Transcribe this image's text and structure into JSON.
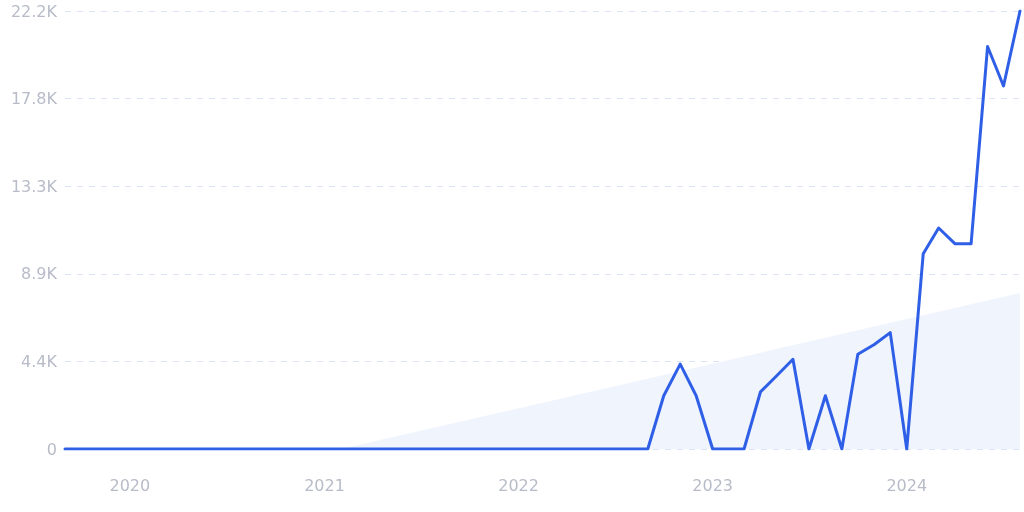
{
  "chart_data": {
    "type": "line",
    "xlim": [
      "2019-09",
      "2024-08"
    ],
    "xticks": [
      {
        "value": "2020",
        "label": "2020"
      },
      {
        "value": "2021",
        "label": "2021"
      },
      {
        "value": "2022",
        "label": "2022"
      },
      {
        "value": "2023",
        "label": "2023"
      },
      {
        "value": "2024",
        "label": "2024"
      }
    ],
    "ylim": [
      0,
      22200
    ],
    "yticks": [
      0,
      {
        "value": 4440,
        "label": "4.4K"
      },
      {
        "value": 8880,
        "label": "8.9K"
      },
      {
        "value": 13320,
        "label": "13.3K"
      },
      {
        "value": 17760,
        "label": "17.8K"
      },
      {
        "value": 22200,
        "label": "22.2K"
      }
    ],
    "grid": "y",
    "marker": "none",
    "line_style": "solid",
    "series": [
      {
        "type": "area",
        "color": "#eff4fd",
        "x": [
          "2021-02",
          "2024-08"
        ],
        "values": [
          0,
          7900
        ]
      },
      {
        "color": "#2f5fe6",
        "x": [
          "2019-09",
          "2019-10",
          "2019-11",
          "2019-12",
          "2020-01",
          "2020-02",
          "2020-03",
          "2020-04",
          "2020-05",
          "2020-06",
          "2020-07",
          "2020-08",
          "2020-09",
          "2020-10",
          "2020-11",
          "2020-12",
          "2021-01",
          "2021-02",
          "2021-03",
          "2021-04",
          "2021-05",
          "2021-06",
          "2021-07",
          "2021-08",
          "2021-09",
          "2021-10",
          "2021-11",
          "2021-12",
          "2022-01",
          "2022-02",
          "2022-03",
          "2022-04",
          "2022-05",
          "2022-06",
          "2022-07",
          "2022-08",
          "2022-09",
          "2022-10",
          "2022-11",
          "2022-12",
          "2023-01",
          "2023-02",
          "2023-03",
          "2023-04",
          "2023-05",
          "2023-06",
          "2023-07",
          "2023-08",
          "2023-09",
          "2023-10",
          "2023-11",
          "2023-12",
          "2024-01",
          "2024-02",
          "2024-03",
          "2024-04",
          "2024-05",
          "2024-06",
          "2024-07",
          "2024-08"
        ],
        "values": [
          0,
          0,
          0,
          0,
          0,
          0,
          0,
          0,
          0,
          0,
          0,
          0,
          0,
          0,
          0,
          0,
          0,
          0,
          0,
          0,
          0,
          0,
          0,
          0,
          0,
          0,
          0,
          0,
          0,
          0,
          0,
          0,
          0,
          0,
          0,
          0,
          0,
          2700,
          4300,
          2700,
          0,
          0,
          0,
          2900,
          3700,
          4550,
          0,
          2700,
          0,
          4800,
          5300,
          5900,
          0,
          9900,
          11200,
          10400,
          10400,
          20400,
          18400,
          22200
        ]
      }
    ]
  }
}
